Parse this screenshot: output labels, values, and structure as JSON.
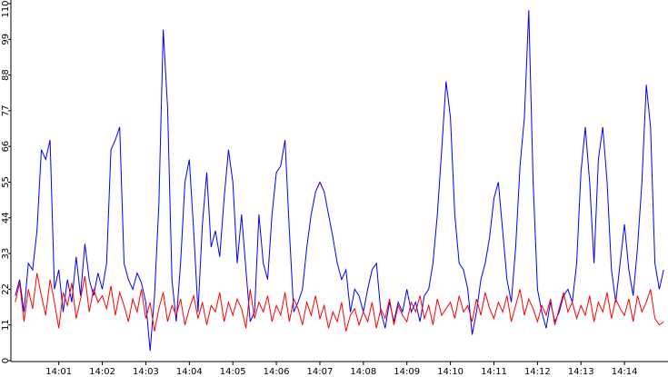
{
  "chart_data": {
    "type": "line",
    "x": [
      0,
      0.1,
      0.2,
      0.3,
      0.4,
      0.5,
      0.6,
      0.7,
      0.8,
      0.9,
      1,
      1.1,
      1.2,
      1.3,
      1.4,
      1.5,
      1.6,
      1.7,
      1.8,
      1.9,
      2,
      2.1,
      2.2,
      2.3,
      2.4,
      2.5,
      2.6,
      2.7,
      2.8,
      2.9,
      3,
      3.1,
      3.2,
      3.3,
      3.4,
      3.5,
      3.6,
      3.7,
      3.8,
      3.9,
      4,
      4.1,
      4.2,
      4.3,
      4.4,
      4.5,
      4.6,
      4.7,
      4.8,
      4.9,
      5,
      5.1,
      5.2,
      5.3,
      5.4,
      5.5,
      5.6,
      5.7,
      5.8,
      5.9,
      6,
      6.1,
      6.2,
      6.3,
      6.4,
      6.5,
      6.6,
      6.7,
      6.8,
      6.9,
      7,
      7.1,
      7.2,
      7.3,
      7.4,
      7.5,
      7.6,
      7.7,
      7.8,
      7.9,
      8,
      8.1,
      8.2,
      8.3,
      8.4,
      8.5,
      8.6,
      8.7,
      8.8,
      8.9,
      9,
      9.1,
      9.2,
      9.3,
      9.4,
      9.5,
      9.6,
      9.7,
      9.8,
      9.9,
      10,
      10.1,
      10.2,
      10.3,
      10.4,
      10.5,
      10.6,
      10.7,
      10.8,
      10.9,
      11,
      11.1,
      11.2,
      11.3,
      11.4,
      11.5,
      11.6,
      11.7,
      11.8,
      11.9,
      12,
      12.1,
      12.2,
      12.3,
      12.4,
      12.5,
      12.6,
      12.7,
      12.8,
      12.9,
      13,
      13.1,
      13.2,
      13.3,
      13.4,
      13.5,
      13.6,
      13.7,
      13.8,
      13.9,
      14,
      14.1,
      14.2,
      14.3,
      14.4,
      14.5,
      14.6,
      14.7,
      14.8,
      14.9
    ],
    "series": [
      {
        "color": "#0000ff",
        "values": [
          20,
          25,
          15,
          30,
          28,
          40,
          65,
          62,
          68,
          22,
          28,
          15,
          25,
          18,
          32,
          20,
          36,
          25,
          20,
          27,
          22,
          30,
          65,
          68,
          72,
          30,
          25,
          22,
          27,
          24,
          18,
          3,
          20,
          48,
          102,
          78,
          25,
          12,
          30,
          55,
          62,
          40,
          15,
          42,
          58,
          35,
          40,
          32,
          50,
          65,
          55,
          30,
          45,
          28,
          12,
          15,
          45,
          30,
          25,
          45,
          58,
          60,
          68,
          40,
          15,
          18,
          22,
          35,
          45,
          52,
          55,
          52,
          45,
          38,
          30,
          25,
          28,
          15,
          22,
          20,
          15,
          22,
          28,
          30,
          15,
          10,
          18,
          12,
          18,
          15,
          22,
          15,
          18,
          12,
          20,
          22,
          30,
          45,
          65,
          86,
          75,
          45,
          30,
          28,
          22,
          8,
          15,
          25,
          30,
          38,
          50,
          55,
          40,
          25,
          18,
          35,
          60,
          75,
          108,
          55,
          22,
          15,
          10,
          18,
          12,
          15,
          20,
          22,
          18,
          30,
          58,
          72,
          55,
          30,
          62,
          72,
          55,
          28,
          18,
          30,
          42,
          28,
          20,
          35,
          55,
          85,
          72,
          30,
          22,
          28
        ]
      },
      {
        "color": "#ff0000",
        "values": [
          18,
          24,
          12,
          22,
          16,
          27,
          20,
          14,
          25,
          18,
          10,
          21,
          17,
          24,
          13,
          19,
          26,
          15,
          22,
          18,
          20,
          16,
          23,
          14,
          21,
          17,
          12,
          19,
          15,
          22,
          13,
          18,
          9,
          16,
          21,
          12,
          17,
          14,
          19,
          11,
          16,
          20,
          13,
          18,
          11,
          17,
          15,
          21,
          12,
          18,
          14,
          19,
          16,
          10,
          22,
          13,
          18,
          15,
          20,
          12,
          17,
          14,
          21,
          12,
          19,
          16,
          11,
          18,
          14,
          20,
          13,
          17,
          10,
          15,
          12,
          18,
          9,
          14,
          16,
          11,
          15,
          12,
          18,
          10,
          16,
          13,
          19,
          11,
          17,
          14,
          12,
          18,
          15,
          20,
          13,
          17,
          11,
          19,
          14,
          16,
          18,
          13,
          20,
          15,
          17,
          12,
          19,
          14,
          21,
          16,
          13,
          18,
          15,
          20,
          12,
          17,
          22,
          14,
          19,
          16,
          12,
          17,
          14,
          19,
          11,
          16,
          21,
          15,
          18,
          13,
          17,
          14,
          20,
          12,
          18,
          15,
          21,
          13,
          19,
          16,
          14,
          19,
          12,
          20,
          15,
          18,
          22,
          13,
          11,
          12
        ]
      }
    ],
    "xlim": [
      -0.1,
      15
    ],
    "xticks": [
      {
        "value": 1,
        "label": "14:01"
      },
      {
        "value": 2,
        "label": "14:02"
      },
      {
        "value": 3,
        "label": "14:03"
      },
      {
        "value": 4,
        "label": "14:04"
      },
      {
        "value": 5,
        "label": "14:05"
      },
      {
        "value": 6,
        "label": "14:06"
      },
      {
        "value": 7,
        "label": "14:07"
      },
      {
        "value": 8,
        "label": "14:08"
      },
      {
        "value": 9,
        "label": "14:09"
      },
      {
        "value": 10,
        "label": "14:10"
      },
      {
        "value": 11,
        "label": "14:11"
      },
      {
        "value": 12,
        "label": "14:12"
      },
      {
        "value": 13,
        "label": "14:13"
      },
      {
        "value": 14,
        "label": "14:14"
      }
    ],
    "ylim": [
      0,
      110
    ],
    "yticks": [
      0,
      11,
      22,
      33,
      44,
      55,
      66,
      77,
      88,
      99,
      110
    ]
  }
}
